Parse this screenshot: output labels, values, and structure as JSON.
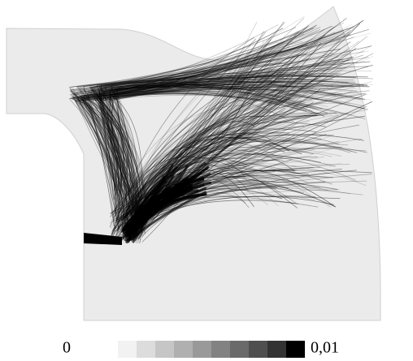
{
  "colorbar": {
    "min_label": "0",
    "max_label": "0,01",
    "colors": [
      "#f2f2f2",
      "#dcdcdc",
      "#c6c6c6",
      "#b0b0b0",
      "#999999",
      "#828282",
      "#6a6a6a",
      "#4f4f4f",
      "#333333",
      "#000000"
    ]
  }
}
